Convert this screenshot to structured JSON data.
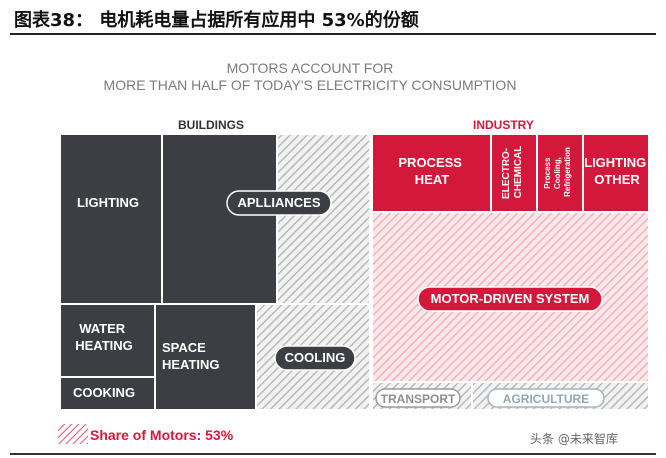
{
  "figure": {
    "label": "图表38：",
    "caption": "电机耗电量占据所有应用中 53%的份额"
  },
  "chart_data": {
    "type": "treemap",
    "title_lines": [
      "MOTORS ACCOUNT FOR",
      "MORE THAN HALF OF TODAY'S ELECTRICITY CONSUMPTION"
    ],
    "sectors": [
      "BUILDINGS",
      "INDUSTRY"
    ],
    "blocks": [
      {
        "id": "lighting",
        "label": "LIGHTING",
        "sector": "BUILDINGS",
        "motor_share": "none"
      },
      {
        "id": "appliances",
        "label": "APLLIANCES",
        "sector": "BUILDINGS",
        "motor_share": "partial"
      },
      {
        "id": "water_heating",
        "label": "WATER HEATING",
        "sector": "BUILDINGS",
        "motor_share": "none"
      },
      {
        "id": "cooking",
        "label": "COOKING",
        "sector": "BUILDINGS",
        "motor_share": "none"
      },
      {
        "id": "space_heating",
        "label": "SPACE HEATING",
        "sector": "BUILDINGS",
        "motor_share": "partial"
      },
      {
        "id": "cooling",
        "label": "COOLING",
        "sector": "BUILDINGS",
        "motor_share": "partial"
      },
      {
        "id": "process_heat",
        "label": "PROCESS HEAT",
        "sector": "INDUSTRY",
        "motor_share": "none"
      },
      {
        "id": "electro_chemical",
        "label": "ELECTRO-CHEMICAL",
        "sector": "INDUSTRY",
        "motor_share": "none"
      },
      {
        "id": "process_cooling",
        "label": "Process Cooling, Refrigeration",
        "sector": "INDUSTRY",
        "motor_share": "none"
      },
      {
        "id": "lighting_other",
        "label": "LIGHTING OTHER",
        "sector": "INDUSTRY",
        "motor_share": "none"
      },
      {
        "id": "motor_driven_system",
        "label": "MOTOR-DRIVEN SYSTEM",
        "sector": "INDUSTRY",
        "motor_share": "full"
      },
      {
        "id": "transport",
        "label": "TRANSPORT",
        "sector": "",
        "motor_share": "full"
      },
      {
        "id": "agriculture",
        "label": "AGRICULTURE",
        "sector": "",
        "motor_share": "full"
      }
    ],
    "legend": {
      "label": "Share of Motors: 53%",
      "value": 53,
      "unit": "%"
    },
    "colors": {
      "buildings": "#3d3e43",
      "industry": "#d4183c",
      "motor_hatch_buildings": "#b8b8b8",
      "motor_hatch_industry": "#f0a9b7",
      "grey_text": "#7b7b7b"
    }
  },
  "watermark": "头条 @未来智库"
}
